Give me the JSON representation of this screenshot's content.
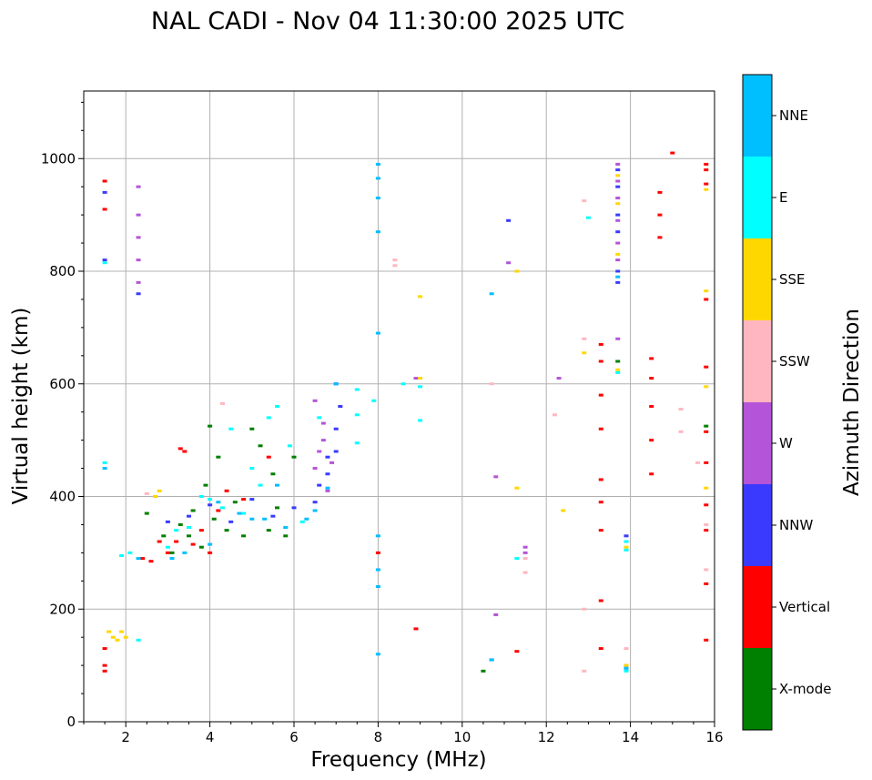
{
  "chart_data": {
    "type": "scatter",
    "title": "NAL CADI - Nov 04 11:30:00 2025 UTC",
    "xlabel": "Frequency (MHz)",
    "ylabel": "Virtual height (km)",
    "xlim": [
      1,
      16
    ],
    "ylim": [
      0,
      1120
    ],
    "xticks": [
      2,
      4,
      6,
      8,
      10,
      12,
      14,
      16
    ],
    "yticks": [
      0,
      200,
      400,
      600,
      800,
      1000
    ],
    "grid": true,
    "colorbar": {
      "label": "Azimuth Direction",
      "categories": [
        {
          "name": "X-mode",
          "color": "#008000"
        },
        {
          "name": "Vertical",
          "color": "#ff0000"
        },
        {
          "name": "NNW",
          "color": "#3a3aff"
        },
        {
          "name": "W",
          "color": "#b454d8"
        },
        {
          "name": "SSW",
          "color": "#ffb6c1"
        },
        {
          "name": "SSE",
          "color": "#ffd700"
        },
        {
          "name": "E",
          "color": "#00ffff"
        },
        {
          "name": "NNE",
          "color": "#00bfff"
        }
      ]
    },
    "series": [
      {
        "name": "X-mode",
        "points": [
          [
            2.5,
            370
          ],
          [
            2.9,
            330
          ],
          [
            3.1,
            300
          ],
          [
            3.3,
            350
          ],
          [
            3.5,
            330
          ],
          [
            3.6,
            375
          ],
          [
            3.8,
            310
          ],
          [
            3.9,
            420
          ],
          [
            4.0,
            525
          ],
          [
            4.1,
            360
          ],
          [
            4.2,
            470
          ],
          [
            4.4,
            340
          ],
          [
            4.6,
            390
          ],
          [
            4.8,
            330
          ],
          [
            5.0,
            520
          ],
          [
            5.2,
            490
          ],
          [
            5.4,
            340
          ],
          [
            5.5,
            440
          ],
          [
            5.6,
            380
          ],
          [
            5.8,
            330
          ],
          [
            6.0,
            470
          ],
          [
            10.5,
            90
          ],
          [
            13.7,
            640
          ],
          [
            15.8,
            525
          ]
        ]
      },
      {
        "name": "Vertical",
        "points": [
          [
            1.5,
            960
          ],
          [
            1.5,
            910
          ],
          [
            1.5,
            130
          ],
          [
            1.5,
            100
          ],
          [
            1.5,
            90
          ],
          [
            2.4,
            290
          ],
          [
            2.6,
            285
          ],
          [
            2.8,
            320
          ],
          [
            3.0,
            300
          ],
          [
            3.2,
            320
          ],
          [
            3.3,
            485
          ],
          [
            3.4,
            480
          ],
          [
            3.6,
            315
          ],
          [
            3.8,
            340
          ],
          [
            4.0,
            300
          ],
          [
            4.2,
            375
          ],
          [
            4.4,
            410
          ],
          [
            4.8,
            395
          ],
          [
            5.4,
            470
          ],
          [
            8.0,
            300
          ],
          [
            8.9,
            165
          ],
          [
            11.3,
            125
          ],
          [
            13.3,
            670
          ],
          [
            13.3,
            640
          ],
          [
            13.3,
            580
          ],
          [
            13.3,
            520
          ],
          [
            13.3,
            430
          ],
          [
            13.3,
            390
          ],
          [
            13.3,
            340
          ],
          [
            13.3,
            215
          ],
          [
            13.3,
            130
          ],
          [
            14.5,
            645
          ],
          [
            14.5,
            610
          ],
          [
            14.5,
            560
          ],
          [
            14.5,
            500
          ],
          [
            14.5,
            440
          ],
          [
            14.7,
            940
          ],
          [
            14.7,
            900
          ],
          [
            14.7,
            860
          ],
          [
            15.0,
            1010
          ],
          [
            15.8,
            990
          ],
          [
            15.8,
            980
          ],
          [
            15.8,
            955
          ],
          [
            15.8,
            750
          ],
          [
            15.8,
            630
          ],
          [
            15.8,
            515
          ],
          [
            15.8,
            460
          ],
          [
            15.8,
            385
          ],
          [
            15.8,
            340
          ],
          [
            15.8,
            245
          ],
          [
            15.8,
            145
          ],
          [
            13.9,
            100
          ]
        ]
      },
      {
        "name": "NNW",
        "points": [
          [
            1.5,
            940
          ],
          [
            1.5,
            820
          ],
          [
            2.3,
            760
          ],
          [
            3.0,
            355
          ],
          [
            3.5,
            365
          ],
          [
            4.0,
            385
          ],
          [
            4.5,
            355
          ],
          [
            5.0,
            395
          ],
          [
            5.5,
            365
          ],
          [
            6.0,
            380
          ],
          [
            6.5,
            390
          ],
          [
            6.6,
            420
          ],
          [
            6.8,
            470
          ],
          [
            6.8,
            440
          ],
          [
            7.0,
            520
          ],
          [
            7.0,
            480
          ],
          [
            7.1,
            560
          ],
          [
            7.0,
            600
          ],
          [
            11.1,
            890
          ],
          [
            10.7,
            110
          ],
          [
            13.7,
            980
          ],
          [
            13.7,
            950
          ],
          [
            13.7,
            900
          ],
          [
            13.7,
            870
          ],
          [
            13.7,
            800
          ],
          [
            13.7,
            780
          ],
          [
            13.9,
            330
          ],
          [
            13.9,
            95
          ]
        ]
      },
      {
        "name": "W",
        "points": [
          [
            2.3,
            950
          ],
          [
            2.3,
            900
          ],
          [
            2.3,
            860
          ],
          [
            2.3,
            820
          ],
          [
            2.3,
            780
          ],
          [
            6.5,
            570
          ],
          [
            6.5,
            450
          ],
          [
            6.6,
            480
          ],
          [
            6.7,
            530
          ],
          [
            6.7,
            500
          ],
          [
            6.8,
            410
          ],
          [
            6.9,
            460
          ],
          [
            8.9,
            610
          ],
          [
            10.8,
            435
          ],
          [
            10.8,
            190
          ],
          [
            11.1,
            815
          ],
          [
            12.3,
            610
          ],
          [
            13.7,
            990
          ],
          [
            13.7,
            960
          ],
          [
            13.7,
            930
          ],
          [
            13.7,
            890
          ],
          [
            13.7,
            850
          ],
          [
            13.7,
            820
          ],
          [
            13.7,
            680
          ],
          [
            11.5,
            310
          ],
          [
            11.5,
            300
          ]
        ]
      },
      {
        "name": "SSW",
        "points": [
          [
            2.5,
            405
          ],
          [
            4.3,
            565
          ],
          [
            8.4,
            820
          ],
          [
            8.4,
            810
          ],
          [
            10.7,
            600
          ],
          [
            11.5,
            290
          ],
          [
            11.5,
            265
          ],
          [
            12.2,
            545
          ],
          [
            12.9,
            925
          ],
          [
            12.9,
            680
          ],
          [
            12.9,
            200
          ],
          [
            12.9,
            90
          ],
          [
            15.2,
            555
          ],
          [
            15.2,
            515
          ],
          [
            15.6,
            460
          ],
          [
            15.8,
            350
          ],
          [
            15.8,
            270
          ],
          [
            13.9,
            130
          ]
        ]
      },
      {
        "name": "SSE",
        "points": [
          [
            1.6,
            160
          ],
          [
            1.7,
            150
          ],
          [
            1.8,
            145
          ],
          [
            1.9,
            160
          ],
          [
            2.0,
            150
          ],
          [
            2.7,
            400
          ],
          [
            2.8,
            410
          ],
          [
            9.0,
            755
          ],
          [
            9.0,
            610
          ],
          [
            11.3,
            800
          ],
          [
            11.3,
            415
          ],
          [
            12.4,
            375
          ],
          [
            12.9,
            655
          ],
          [
            13.7,
            970
          ],
          [
            13.7,
            920
          ],
          [
            13.7,
            830
          ],
          [
            13.7,
            625
          ],
          [
            15.8,
            945
          ],
          [
            15.8,
            765
          ],
          [
            15.8,
            595
          ],
          [
            15.8,
            415
          ],
          [
            13.9,
            310
          ],
          [
            13.9,
            100
          ]
        ]
      },
      {
        "name": "E",
        "points": [
          [
            1.5,
            815
          ],
          [
            1.5,
            460
          ],
          [
            1.9,
            295
          ],
          [
            2.1,
            300
          ],
          [
            2.3,
            145
          ],
          [
            3.0,
            310
          ],
          [
            3.2,
            340
          ],
          [
            3.5,
            345
          ],
          [
            3.8,
            400
          ],
          [
            4.0,
            395
          ],
          [
            4.3,
            380
          ],
          [
            4.5,
            520
          ],
          [
            4.8,
            370
          ],
          [
            5.0,
            450
          ],
          [
            5.2,
            420
          ],
          [
            5.4,
            540
          ],
          [
            5.6,
            560
          ],
          [
            5.9,
            490
          ],
          [
            6.2,
            355
          ],
          [
            6.6,
            540
          ],
          [
            7.5,
            590
          ],
          [
            7.5,
            545
          ],
          [
            7.5,
            495
          ],
          [
            7.9,
            570
          ],
          [
            9.0,
            595
          ],
          [
            9.0,
            535
          ],
          [
            8.6,
            600
          ],
          [
            11.3,
            290
          ],
          [
            13.0,
            895
          ],
          [
            13.7,
            620
          ],
          [
            13.9,
            320
          ],
          [
            13.9,
            305
          ],
          [
            13.9,
            90
          ]
        ]
      },
      {
        "name": "NNE",
        "points": [
          [
            1.5,
            450
          ],
          [
            2.3,
            290
          ],
          [
            3.1,
            290
          ],
          [
            3.4,
            300
          ],
          [
            4.0,
            315
          ],
          [
            4.2,
            390
          ],
          [
            4.7,
            370
          ],
          [
            5.0,
            360
          ],
          [
            5.3,
            360
          ],
          [
            5.6,
            420
          ],
          [
            5.8,
            345
          ],
          [
            6.3,
            360
          ],
          [
            6.5,
            375
          ],
          [
            6.8,
            415
          ],
          [
            7.0,
            600
          ],
          [
            8.0,
            990
          ],
          [
            8.0,
            965
          ],
          [
            8.0,
            930
          ],
          [
            8.0,
            870
          ],
          [
            8.0,
            690
          ],
          [
            8.0,
            330
          ],
          [
            8.0,
            270
          ],
          [
            8.0,
            240
          ],
          [
            8.0,
            120
          ],
          [
            10.7,
            760
          ],
          [
            10.7,
            110
          ],
          [
            13.7,
            790
          ],
          [
            13.9,
            95
          ]
        ]
      }
    ]
  }
}
